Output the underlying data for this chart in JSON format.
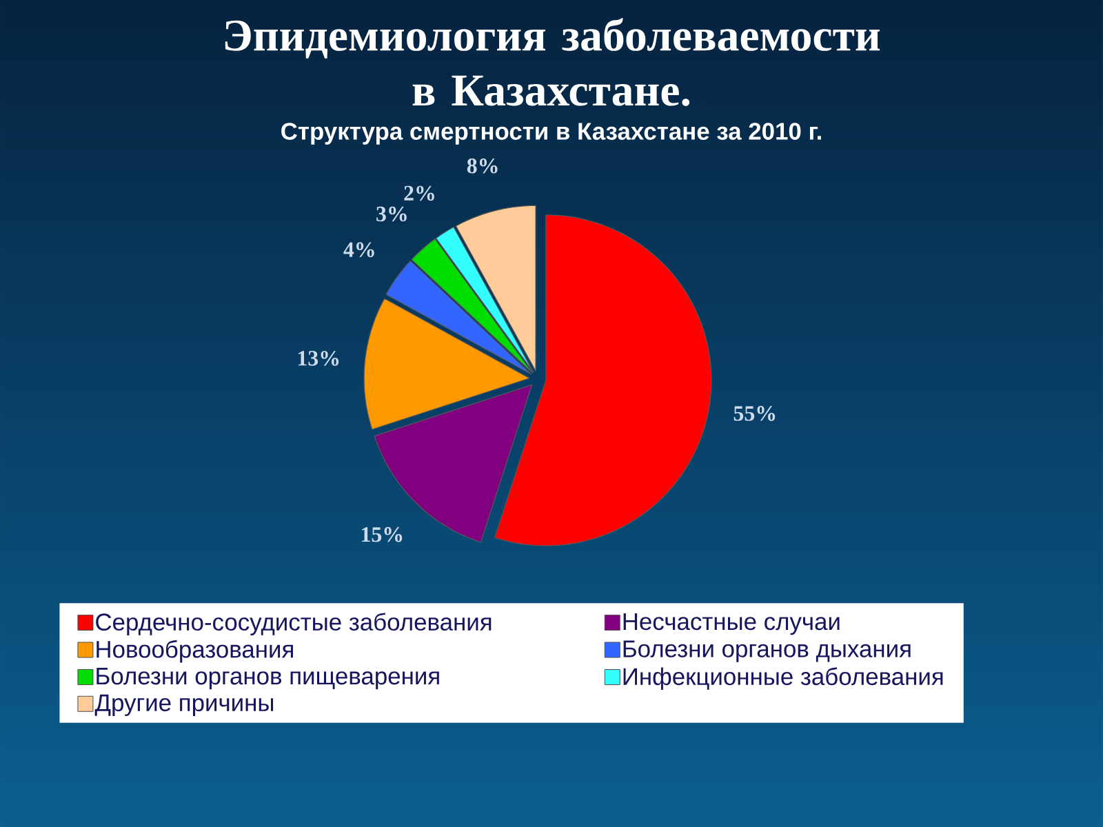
{
  "chart_data": {
    "type": "pie",
    "title": "Эпидемиология заболеваемости в Казахстане.",
    "subtitle": "Структура смертности в Казахстане за 2010 г.",
    "categories": [
      "Сердечно-сосудистые заболевания",
      "Несчастные случаи",
      "Новообразования",
      "Болезни органов дыхания",
      "Болезни органов пищеварения",
      "Инфекционные заболевания",
      "Другие причины"
    ],
    "values": [
      55,
      15,
      13,
      4,
      3,
      2,
      8
    ],
    "colors": [
      "#ff0000",
      "#800080",
      "#ff9900",
      "#3366ff",
      "#00dd00",
      "#33ffff",
      "#ffcc99"
    ],
    "value_labels": [
      "55%",
      "15%",
      "13%",
      "4%",
      "3%",
      "2%",
      "8%"
    ],
    "legend": "bottom"
  }
}
